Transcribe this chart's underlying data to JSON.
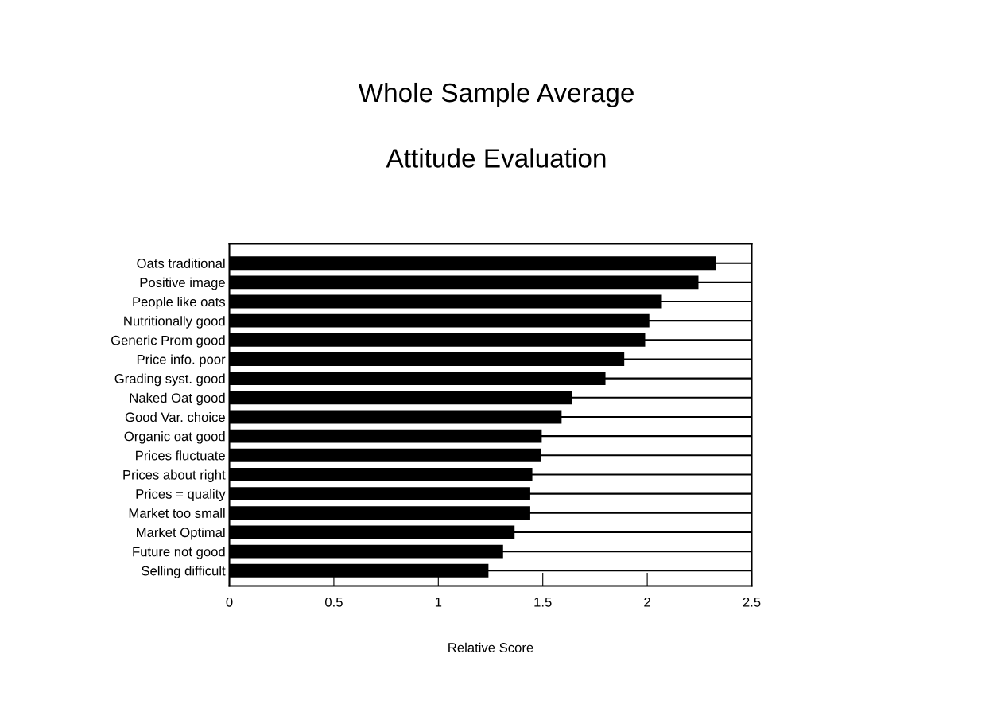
{
  "chart_data": {
    "type": "bar",
    "orientation": "horizontal",
    "title": "Whole Sample Average",
    "subtitle": "Attitude Evaluation",
    "xlabel": "Relative Score",
    "categories": [
      "Oats traditional",
      "Positive image",
      "People like oats",
      "Nutritionally good",
      "Generic Prom good",
      "Price info. poor",
      "Grading syst. good",
      "Naked Oat good",
      "Good Var. choice",
      "Organic oat good",
      "Prices fluctuate",
      "Prices about right",
      "Prices = quality",
      "Market too small",
      "Market Optimal",
      "Future not good",
      "Selling difficult"
    ],
    "values": [
      2.33,
      2.245,
      2.07,
      2.01,
      1.99,
      1.89,
      1.8,
      1.64,
      1.59,
      1.495,
      1.49,
      1.45,
      1.44,
      1.44,
      1.365,
      1.31,
      1.24
    ],
    "color": "#000000",
    "xlim": [
      0,
      2.5
    ],
    "xticks": [
      0,
      0.5,
      1,
      1.5,
      2,
      2.5
    ],
    "grid": "y"
  }
}
